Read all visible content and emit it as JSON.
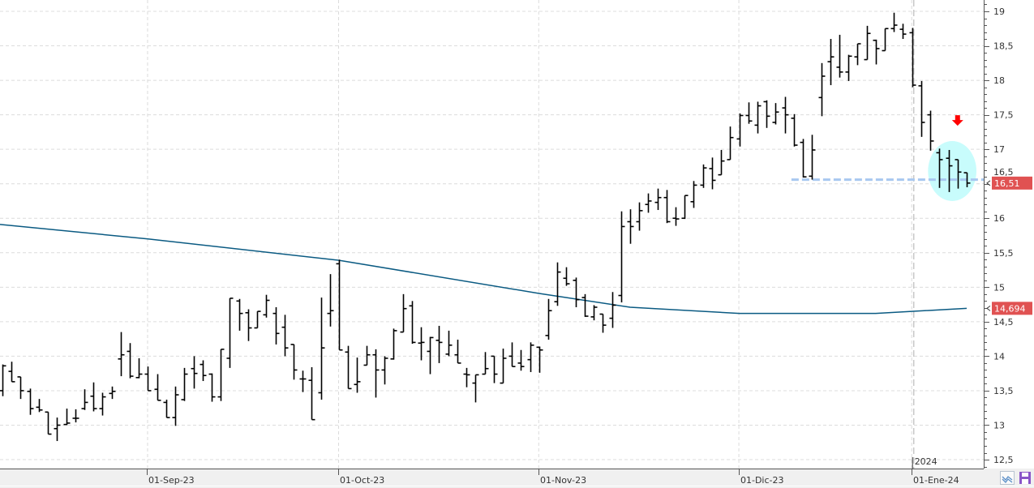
{
  "chart_data": {
    "type": "ohlc",
    "y_axis": {
      "position": "right",
      "range": [
        12.5,
        19
      ],
      "ticks": [
        "12,5",
        "13",
        "13,5",
        "14",
        "14,5",
        "15",
        "15,5",
        "16",
        "16,5",
        "17",
        "17,5",
        "18",
        "18,5",
        "19"
      ],
      "tick_values": [
        12.5,
        13,
        13.5,
        14,
        14.5,
        15,
        15.5,
        16,
        16.5,
        17,
        17.5,
        18,
        18.5,
        19
      ]
    },
    "x_axis": {
      "labels": [
        {
          "date": "2023-09-01",
          "label": "01-Sep-23"
        },
        {
          "date": "2023-10-02",
          "label": "01-Oct-23"
        },
        {
          "date": "2023-11-01",
          "label": "01-Nov-23"
        },
        {
          "date": "2023-12-01",
          "label": "01-Dic-23"
        },
        {
          "date": "2024-01-02",
          "label": "01-Ene-24"
        }
      ],
      "year_separator": {
        "date": "2024-01-02",
        "label": "2024"
      }
    },
    "grid": true,
    "colors": {
      "bars": "#000000",
      "moving_average": "#0a5a82",
      "price_tag": "#e05252",
      "support_line": "#a8c8f0",
      "highlight": "#c8fcfc",
      "arrow": "#ff0000"
    },
    "ohlc": [
      [
        "2023-08-10",
        13.5,
        13.88,
        13.42,
        13.86
      ],
      [
        "2023-08-11",
        13.78,
        13.92,
        13.63,
        13.63
      ],
      [
        "2023-08-14",
        13.7,
        13.7,
        13.38,
        13.5
      ],
      [
        "2023-08-15",
        13.49,
        13.53,
        13.15,
        13.24
      ],
      [
        "2023-08-16",
        13.26,
        13.38,
        13.19,
        13.22
      ],
      [
        "2023-08-17",
        13.19,
        13.19,
        12.87,
        12.87
      ],
      [
        "2023-08-18",
        12.95,
        13.11,
        12.77,
        13.0
      ],
      [
        "2023-08-21",
        13.01,
        13.24,
        13.0,
        13.03
      ],
      [
        "2023-08-22",
        13.1,
        13.23,
        13.04,
        13.1
      ],
      [
        "2023-08-23",
        13.24,
        13.52,
        13.22,
        13.33
      ],
      [
        "2023-08-24",
        13.42,
        13.62,
        13.2,
        13.24
      ],
      [
        "2023-08-25",
        13.24,
        13.47,
        13.14,
        13.41
      ],
      [
        "2023-08-28",
        13.46,
        13.56,
        13.38,
        13.49
      ],
      [
        "2023-08-29",
        13.96,
        14.35,
        13.71,
        14.02
      ],
      [
        "2023-08-30",
        14.07,
        14.19,
        13.68,
        13.71
      ],
      [
        "2023-08-31",
        13.69,
        13.97,
        13.68,
        13.74
      ],
      [
        "2023-09-01",
        13.74,
        13.85,
        13.5,
        13.5
      ],
      [
        "2023-09-04",
        13.52,
        13.74,
        13.36,
        13.36
      ],
      [
        "2023-09-05",
        13.33,
        13.37,
        13.11,
        13.11
      ],
      [
        "2023-09-06",
        13.11,
        13.56,
        12.99,
        13.44
      ],
      [
        "2023-09-07",
        13.37,
        13.83,
        13.35,
        13.74
      ],
      [
        "2023-09-08",
        13.82,
        14.0,
        13.53,
        13.75
      ],
      [
        "2023-09-11",
        13.88,
        13.94,
        13.64,
        13.72
      ],
      [
        "2023-09-12",
        13.74,
        13.75,
        13.34,
        13.41
      ],
      [
        "2023-09-13",
        13.41,
        14.1,
        13.35,
        14.1
      ],
      [
        "2023-09-14",
        13.97,
        14.84,
        13.83,
        14.84
      ],
      [
        "2023-09-15",
        14.8,
        14.83,
        14.37,
        14.62
      ],
      [
        "2023-09-18",
        14.63,
        14.68,
        14.22,
        14.41
      ],
      [
        "2023-09-19",
        14.41,
        14.65,
        14.41,
        14.65
      ],
      [
        "2023-09-20",
        14.6,
        14.89,
        14.56,
        14.81
      ],
      [
        "2023-09-21",
        14.62,
        14.71,
        14.17,
        14.33
      ],
      [
        "2023-09-22",
        14.42,
        14.6,
        14.0,
        14.12
      ],
      [
        "2023-09-25",
        14.17,
        14.17,
        13.66,
        13.8
      ],
      [
        "2023-09-26",
        13.67,
        13.79,
        13.48,
        13.67
      ],
      [
        "2023-09-27",
        13.65,
        13.84,
        13.08,
        13.08
      ],
      [
        "2023-09-28",
        13.47,
        14.85,
        13.37,
        14.12
      ],
      [
        "2023-09-29",
        14.62,
        15.19,
        14.43,
        14.66
      ],
      [
        "2023-10-02",
        15.34,
        15.4,
        14.09,
        14.09
      ],
      [
        "2023-10-03",
        14.06,
        14.15,
        13.53,
        13.53
      ],
      [
        "2023-10-04",
        13.59,
        13.98,
        13.47,
        13.63
      ],
      [
        "2023-10-05",
        13.87,
        14.15,
        13.87,
        14.02
      ],
      [
        "2023-10-06",
        14.02,
        14.1,
        13.4,
        13.8
      ],
      [
        "2023-10-09",
        13.8,
        14.0,
        13.59,
        13.97
      ],
      [
        "2023-10-10",
        13.96,
        14.4,
        13.95,
        14.37
      ],
      [
        "2023-10-11",
        14.35,
        14.9,
        14.35,
        14.69
      ],
      [
        "2023-10-12",
        14.73,
        14.8,
        14.18,
        14.2
      ],
      [
        "2023-10-13",
        14.19,
        14.42,
        13.94,
        14.2
      ],
      [
        "2023-10-16",
        14.07,
        14.28,
        13.74,
        14.27
      ],
      [
        "2023-10-17",
        14.23,
        14.44,
        13.9,
        14.2
      ],
      [
        "2023-10-18",
        14.03,
        14.37,
        14.0,
        14.16
      ],
      [
        "2023-10-19",
        14.02,
        14.24,
        13.9,
        13.9
      ],
      [
        "2023-10-20",
        13.74,
        13.83,
        13.55,
        13.73
      ],
      [
        "2023-10-23",
        13.61,
        13.73,
        13.33,
        13.73
      ],
      [
        "2023-10-24",
        13.74,
        14.06,
        13.74,
        13.82
      ],
      [
        "2023-10-25",
        14.0,
        14.0,
        13.61,
        13.74
      ],
      [
        "2023-10-26",
        13.61,
        14.11,
        13.61,
        13.97
      ],
      [
        "2023-10-27",
        14.0,
        14.2,
        13.85,
        13.85
      ],
      [
        "2023-10-30",
        13.9,
        14.09,
        13.79,
        13.85
      ],
      [
        "2023-10-31",
        13.95,
        14.2,
        13.77,
        14.16
      ],
      [
        "2023-11-01",
        14.13,
        14.14,
        13.76,
        14.09
      ],
      [
        "2023-11-02",
        14.3,
        14.83,
        14.24,
        14.66
      ],
      [
        "2023-11-03",
        14.79,
        15.36,
        14.73,
        15.22
      ],
      [
        "2023-11-06",
        15.13,
        15.29,
        15.02,
        15.05
      ],
      [
        "2023-11-07",
        15.1,
        15.14,
        14.71,
        14.82
      ],
      [
        "2023-11-08",
        14.85,
        14.9,
        14.57,
        14.58
      ],
      [
        "2023-11-09",
        14.57,
        14.74,
        14.52,
        14.71
      ],
      [
        "2023-11-10",
        14.61,
        14.61,
        14.34,
        14.45
      ],
      [
        "2023-11-13",
        14.55,
        14.93,
        14.41,
        14.74
      ],
      [
        "2023-11-14",
        14.88,
        16.1,
        14.78,
        15.88
      ],
      [
        "2023-11-15",
        15.95,
        16.13,
        15.63,
        15.88
      ],
      [
        "2023-11-16",
        15.95,
        16.23,
        15.82,
        16.11
      ],
      [
        "2023-11-17",
        16.2,
        16.36,
        16.08,
        16.25
      ],
      [
        "2023-11-20",
        16.23,
        16.43,
        16.12,
        16.3
      ],
      [
        "2023-11-21",
        16.3,
        16.41,
        15.93,
        15.95
      ],
      [
        "2023-11-22",
        16.0,
        16.16,
        15.89,
        15.99
      ],
      [
        "2023-11-23",
        16.0,
        16.33,
        15.99,
        16.33
      ],
      [
        "2023-11-24",
        16.24,
        16.54,
        16.15,
        16.48
      ],
      [
        "2023-11-27",
        16.48,
        16.78,
        16.44,
        16.73
      ],
      [
        "2023-11-28",
        16.72,
        16.88,
        16.42,
        16.55
      ],
      [
        "2023-11-29",
        16.63,
        16.99,
        16.63,
        16.83
      ],
      [
        "2023-11-30",
        16.85,
        17.33,
        16.85,
        17.17
      ],
      [
        "2023-12-01",
        17.15,
        17.52,
        17.04,
        17.49
      ],
      [
        "2023-12-04",
        17.49,
        17.68,
        17.37,
        17.41
      ],
      [
        "2023-12-05",
        17.35,
        17.69,
        17.23,
        17.63
      ],
      [
        "2023-12-06",
        17.69,
        17.71,
        17.31,
        17.48
      ],
      [
        "2023-12-07",
        17.39,
        17.67,
        17.36,
        17.54
      ],
      [
        "2023-12-08",
        17.6,
        17.76,
        17.23,
        17.5
      ],
      [
        "2023-12-11",
        17.45,
        17.51,
        17.04,
        17.06
      ],
      [
        "2023-12-12",
        17.1,
        17.15,
        16.59,
        16.6
      ],
      [
        "2023-12-13",
        16.61,
        17.21,
        16.56,
        16.99
      ],
      [
        "2023-12-14",
        17.75,
        18.25,
        17.48,
        18.06
      ],
      [
        "2023-12-15",
        18.27,
        18.6,
        17.93,
        18.34
      ],
      [
        "2023-12-18",
        18.19,
        18.66,
        18.04,
        18.12
      ],
      [
        "2023-12-19",
        18.12,
        18.37,
        17.99,
        18.35
      ],
      [
        "2023-12-20",
        18.34,
        18.53,
        18.22,
        18.53
      ],
      [
        "2023-12-21",
        18.3,
        18.79,
        18.3,
        18.68
      ],
      [
        "2023-12-22",
        18.58,
        18.59,
        18.23,
        18.46
      ],
      [
        "2023-12-27",
        18.43,
        18.75,
        18.43,
        18.75
      ],
      [
        "2023-12-28",
        18.75,
        18.98,
        18.7,
        18.8
      ],
      [
        "2023-12-29",
        18.74,
        18.82,
        18.6,
        18.67
      ],
      [
        "2024-01-02",
        18.69,
        18.76,
        17.9,
        17.93
      ],
      [
        "2024-01-03",
        17.92,
        17.99,
        17.18,
        17.39
      ],
      [
        "2024-01-04",
        17.5,
        17.56,
        16.98,
        17.12
      ],
      [
        "2024-01-05",
        16.95,
        17.01,
        16.44,
        16.85
      ],
      [
        "2024-01-08",
        16.87,
        16.99,
        16.38,
        16.76
      ],
      [
        "2024-01-09",
        16.85,
        16.85,
        16.43,
        16.67
      ],
      [
        "2024-01-10",
        16.66,
        16.66,
        16.45,
        16.51
      ]
    ],
    "moving_average": [
      [
        "2023-08-10",
        15.91
      ],
      [
        "2023-09-01",
        15.7
      ],
      [
        "2023-10-02",
        15.39
      ],
      [
        "2023-11-01",
        14.91
      ],
      [
        "2023-11-15",
        14.71
      ],
      [
        "2023-12-01",
        14.62
      ],
      [
        "2023-12-22",
        14.62
      ],
      [
        "2024-01-10",
        14.694
      ]
    ],
    "support_line": {
      "value": 16.56,
      "from": "2023-12-11"
    },
    "highlight": {
      "from": "2024-01-05",
      "to": "2024-01-10"
    },
    "arrow": {
      "date": "2024-01-09",
      "value": 17.4,
      "direction": "down"
    },
    "last_price": {
      "value": 16.51,
      "label": "16,51"
    },
    "ma_last": {
      "value": 14.694,
      "label": "14,694"
    }
  },
  "toolbar": {
    "indicator_icon": "chart-lines-icon",
    "save_icon": "floppy-disk-icon"
  }
}
